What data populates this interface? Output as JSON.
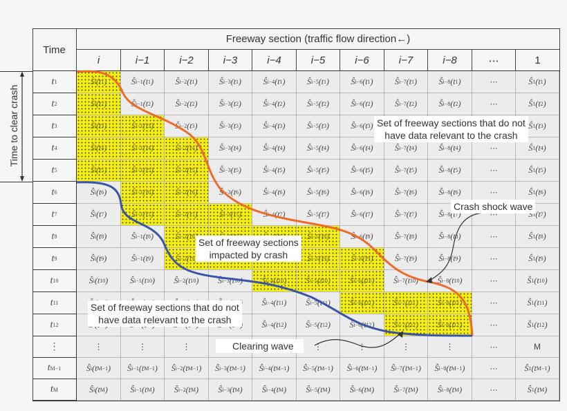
{
  "header": {
    "time_label": "Time",
    "section_title": "Freeway section (traffic flow direction←)",
    "columns": [
      "i",
      "i−1",
      "i−2",
      "i−3",
      "i−4",
      "i−5",
      "i−6",
      "i−7",
      "i−8",
      "⋯",
      "1"
    ]
  },
  "side_label": "Time to clear crash",
  "rows": [
    {
      "time": "t",
      "sub": "1"
    },
    {
      "time": "t",
      "sub": "2"
    },
    {
      "time": "t",
      "sub": "3"
    },
    {
      "time": "t",
      "sub": "4"
    },
    {
      "time": "t",
      "sub": "5"
    },
    {
      "time": "t",
      "sub": "6"
    },
    {
      "time": "t",
      "sub": "7"
    },
    {
      "time": "t",
      "sub": "8"
    },
    {
      "time": "t",
      "sub": "9"
    },
    {
      "time": "t",
      "sub": "10"
    },
    {
      "time": "t",
      "sub": "11"
    },
    {
      "time": "t",
      "sub": "12"
    },
    {
      "time": "⋮",
      "sub": ""
    },
    {
      "time": "t",
      "sub": "M−1"
    },
    {
      "time": "t",
      "sub": "M"
    }
  ],
  "cell_subscripts": [
    "i",
    "i−1",
    "i−2",
    "i−3",
    "i−4",
    "i−5",
    "i−6",
    "i−7",
    "i−8",
    "",
    "1"
  ],
  "cell_symbol": "Ŝ",
  "vertical_ellipsis": "⋮",
  "horizontal_ellipsis": "⋯",
  "ellipsis_row_last_value": "M",
  "impacted_cells": {
    "0": [
      0
    ],
    "1": [
      0
    ],
    "2": [
      0,
      1
    ],
    "3": [
      0,
      1,
      2
    ],
    "4": [
      0,
      1,
      2
    ],
    "5": [
      1,
      2
    ],
    "6": [
      1,
      2,
      3
    ],
    "7": [
      2,
      3,
      4,
      5
    ],
    "8": [
      2,
      3,
      4,
      5,
      6
    ],
    "9": [
      4,
      5,
      6
    ],
    "10": [
      6,
      7,
      8
    ],
    "11": [
      7,
      8
    ]
  },
  "annotations": {
    "no_data_top": [
      "Set of freeway sections that do not",
      "have data relevant to the crash"
    ],
    "no_data_bottom": [
      "Set of freeway sections that do not",
      "have data relevant to the crash"
    ],
    "impacted": [
      "Set of freeway sections",
      "impacted by crash"
    ],
    "shock_wave": "Crash shock wave",
    "clearing_wave": "Clearing wave"
  },
  "colors": {
    "impacted_fill": "#f5ee16",
    "shock_wave": "#ee6a2a",
    "clearing_wave": "#3a55a8",
    "cell_bg": "#ececec",
    "grid_line": "#b8b8b8"
  }
}
